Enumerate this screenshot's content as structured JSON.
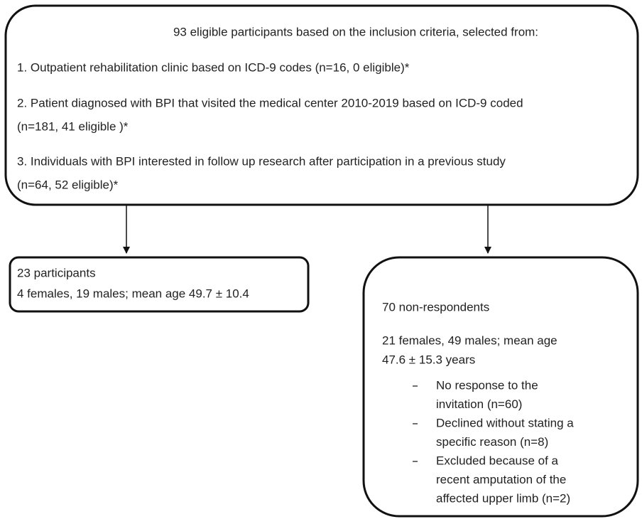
{
  "top_box": {
    "heading": "93 eligible participants based on the inclusion criteria, selected from:",
    "items": [
      [
        "1. Outpatient rehabilitation clinic based on ICD-9 codes (n=16, 0 eligible)*"
      ],
      [
        "2. Patient diagnosed with BPI that visited the medical center 2010-2019 based on ICD-9 coded",
        "(n=181, 41 eligible )*"
      ],
      [
        "3. Individuals with BPI interested in follow up research after participation in a previous study",
        "(n=64, 52 eligible)*"
      ]
    ]
  },
  "left_box": {
    "lines": [
      "23 participants",
      "4 females, 19 males; mean age 49.7 ± 10.4"
    ]
  },
  "right_box": {
    "title": "70 non-respondents",
    "summary": [
      "21 females, 49 males; mean age",
      "47.6 ± 15.3 years"
    ],
    "bullets": [
      [
        "No response to the",
        "invitation (n=60)"
      ],
      [
        "Declined without stating a",
        "specific reason (n=8)"
      ],
      [
        "Excluded because of a",
        "recent amputation of the",
        "affected upper limb (n=2)"
      ]
    ]
  }
}
